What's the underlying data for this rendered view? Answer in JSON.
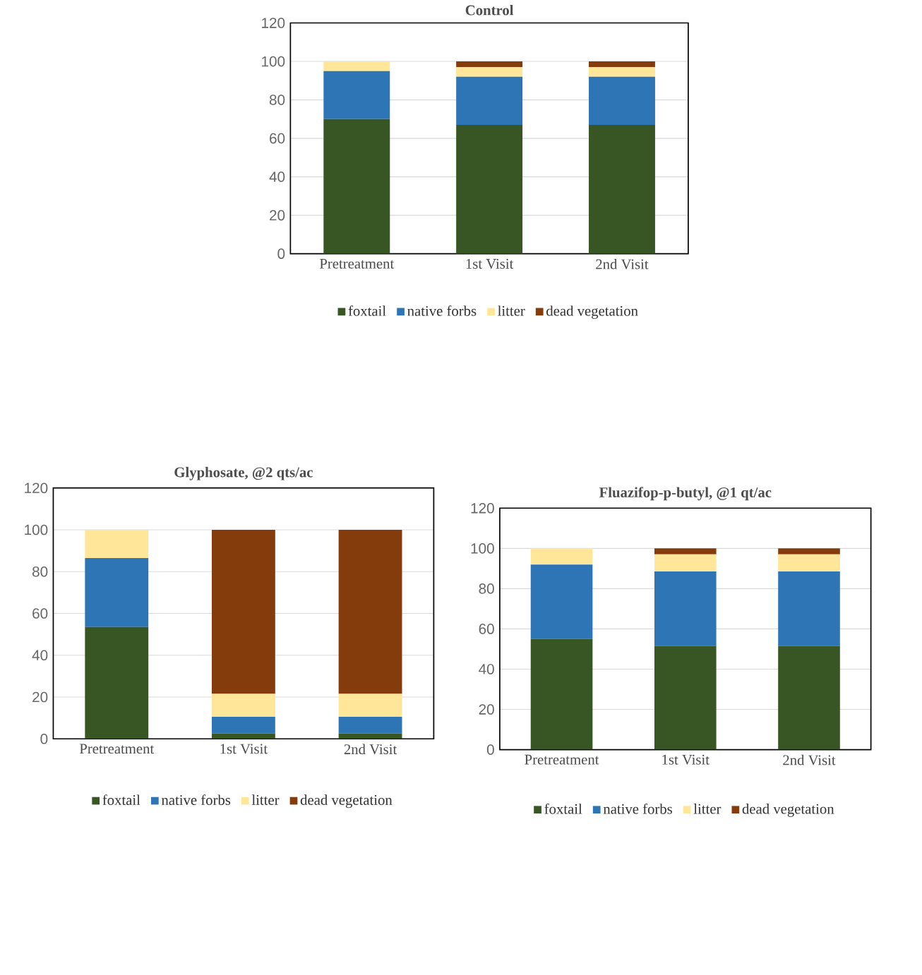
{
  "chart_data": [
    {
      "type": "bar",
      "stacked": true,
      "title": "Control",
      "categories": [
        "Pretreatment",
        "1st Visit",
        "2nd Visit"
      ],
      "ylim": [
        0,
        120
      ],
      "yticks": [
        0,
        20,
        40,
        60,
        80,
        100,
        120
      ],
      "grid": "y",
      "legend": "bottom",
      "series": [
        {
          "name": "foxtail",
          "color": "#375623",
          "values": [
            70,
            67,
            67
          ]
        },
        {
          "name": "native forbs",
          "color": "#2e75b6",
          "values": [
            25,
            25,
            25
          ]
        },
        {
          "name": "litter",
          "color": "#ffe699",
          "values": [
            5,
            5,
            5
          ]
        },
        {
          "name": "dead vegetation",
          "color": "#843c0c",
          "values": [
            0,
            3,
            3
          ]
        }
      ]
    },
    {
      "type": "bar",
      "stacked": true,
      "title": "Glyphosate, @2 qts/ac",
      "categories": [
        "Pretreatment",
        "1st Visit",
        "2nd Visit"
      ],
      "ylim": [
        0,
        120
      ],
      "yticks": [
        0,
        20,
        40,
        60,
        80,
        100,
        120
      ],
      "grid": "y",
      "legend": "bottom",
      "series": [
        {
          "name": "foxtail",
          "color": "#375623",
          "values": [
            53.5,
            2.5,
            2.5
          ]
        },
        {
          "name": "native forbs",
          "color": "#2e75b6",
          "values": [
            33,
            8,
            8
          ]
        },
        {
          "name": "litter",
          "color": "#ffe699",
          "values": [
            13.5,
            11,
            11
          ]
        },
        {
          "name": "dead vegetation",
          "color": "#843c0c",
          "values": [
            0,
            78.5,
            78.5
          ]
        }
      ]
    },
    {
      "type": "bar",
      "stacked": true,
      "title": "Fluazifop-p-butyl, @1 qt/ac",
      "categories": [
        "Pretreatment",
        "1st Visit",
        "2nd Visit"
      ],
      "ylim": [
        0,
        120
      ],
      "yticks": [
        0,
        20,
        40,
        60,
        80,
        100,
        120
      ],
      "grid": "y",
      "legend": "bottom",
      "series": [
        {
          "name": "foxtail",
          "color": "#375623",
          "values": [
            55,
            51.5,
            51.5
          ]
        },
        {
          "name": "native forbs",
          "color": "#2e75b6",
          "values": [
            37,
            37,
            37
          ]
        },
        {
          "name": "litter",
          "color": "#ffe699",
          "values": [
            8,
            8.5,
            8.5
          ]
        },
        {
          "name": "dead vegetation",
          "color": "#843c0c",
          "values": [
            0,
            3,
            3
          ]
        }
      ]
    }
  ]
}
